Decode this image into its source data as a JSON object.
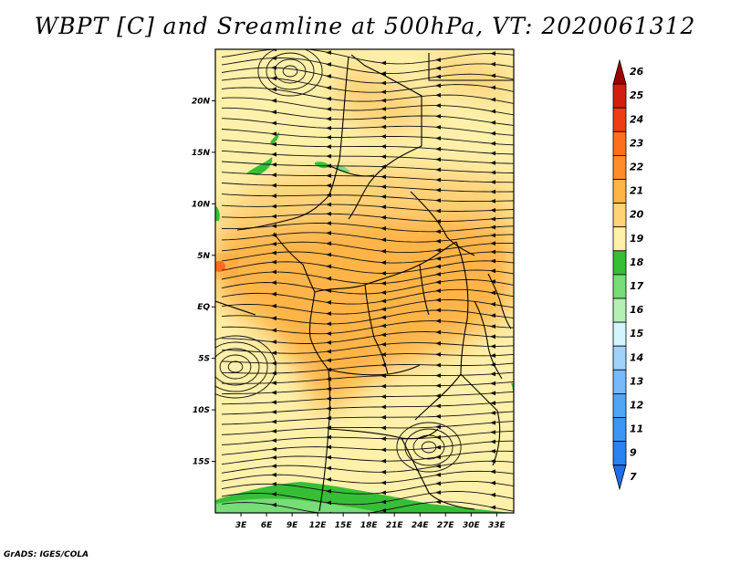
{
  "title": "WBPT [C] and Sreamline at 500hPa, VT: 2020061312",
  "credit": "GrADS: IGES/COLA",
  "map": {
    "lon_labels": [
      "3E",
      "6E",
      "9E",
      "12E",
      "15E",
      "18E",
      "21E",
      "24E",
      "27E",
      "30E",
      "33E"
    ],
    "lat_labels": [
      "20N",
      "15N",
      "10N",
      "5N",
      "EQ",
      "5S",
      "10S",
      "15S"
    ],
    "lon_values": [
      3,
      6,
      9,
      12,
      15,
      18,
      21,
      24,
      27,
      30,
      33
    ],
    "lat_values": [
      20,
      15,
      10,
      5,
      0,
      -5,
      -10,
      -15
    ],
    "lon_range": [
      0,
      35
    ],
    "lat_range": [
      -20,
      25
    ]
  },
  "colorbar": {
    "labels": [
      "7",
      "9",
      "11",
      "12",
      "13",
      "14",
      "15",
      "16",
      "17",
      "18",
      "19",
      "20",
      "21",
      "22",
      "23",
      "24",
      "25",
      "26"
    ],
    "colors": [
      "#1e6ee6",
      "#2882f0",
      "#3c96f5",
      "#50a5f5",
      "#78b9fa",
      "#a0d2fa",
      "#d2f5ff",
      "#b4f0b4",
      "#78dc78",
      "#37be37",
      "#fff0aa",
      "#ffd278",
      "#ffb446",
      "#ff8c28",
      "#ff6e1e",
      "#ee3c14",
      "#d21e0f",
      "#a00000"
    ]
  }
}
